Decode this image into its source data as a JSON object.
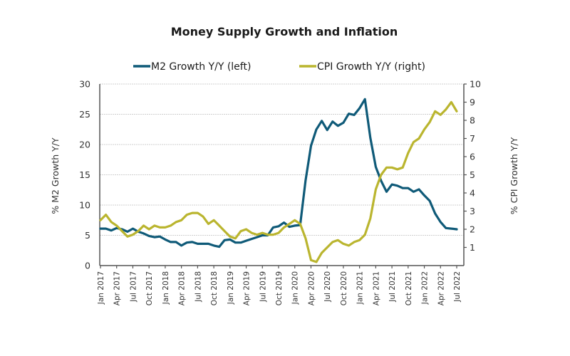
{
  "chart_data": {
    "type": "line",
    "title": "Money Supply Growth and Inflation",
    "xlabel": "",
    "ylabel_left": "% M2 Growth Y/Y",
    "ylabel_right": "% CPI Growth Y/Y",
    "ylim_left": [
      0,
      30
    ],
    "ylim_right": [
      0,
      10
    ],
    "yticks_left": [
      0,
      5,
      10,
      15,
      20,
      25,
      30
    ],
    "yticks_right": [
      1,
      2,
      3,
      4,
      5,
      6,
      7,
      8,
      9,
      10
    ],
    "grid": true,
    "legend_position": "top-center",
    "x_tick_labels": [
      "Jan 2017",
      "Apr 2017",
      "Jul 2017",
      "Oct 2017",
      "Jan 2018",
      "Apr 2018",
      "Jul 2018",
      "Oct 2018",
      "Jan 2019",
      "Apr 2019",
      "Jul 2019",
      "Oct 2019",
      "Jan 2020",
      "Apr 2020",
      "Jul 2020",
      "Oct 2020",
      "Jan 2021",
      "Apr 2021",
      "Jul 2021",
      "Oct 2021",
      "Jan 2022",
      "Apr 2022",
      "Jul 2022"
    ],
    "x_start": "Jan 2017",
    "x_frequency": "monthly",
    "series": [
      {
        "name": "M2 Growth Y/Y (left)",
        "axis": "left",
        "color": "#0f5a78",
        "values": [
          6.1,
          6.1,
          5.8,
          6.2,
          6.0,
          5.6,
          6.1,
          5.6,
          5.3,
          4.9,
          4.7,
          4.8,
          4.3,
          3.9,
          3.9,
          3.3,
          3.8,
          3.9,
          3.6,
          3.6,
          3.6,
          3.3,
          3.1,
          4.2,
          4.3,
          3.8,
          3.8,
          4.1,
          4.4,
          4.7,
          5.0,
          5.0,
          6.3,
          6.5,
          7.1,
          6.4,
          6.6,
          6.7,
          14.1,
          19.8,
          22.5,
          23.9,
          22.4,
          23.8,
          23.1,
          23.6,
          25.1,
          24.9,
          26.0,
          27.5,
          21.1,
          16.3,
          14.0,
          12.2,
          13.4,
          13.2,
          12.8,
          12.8,
          12.2,
          12.6,
          11.6,
          10.7,
          8.6,
          7.2,
          6.2,
          6.1,
          6.0
        ]
      },
      {
        "name": "CPI Growth Y/Y (right)",
        "axis": "right",
        "color": "#bab52f",
        "values": [
          2.5,
          2.8,
          2.4,
          2.2,
          1.9,
          1.6,
          1.7,
          1.9,
          2.2,
          2.0,
          2.2,
          2.1,
          2.1,
          2.2,
          2.4,
          2.5,
          2.8,
          2.9,
          2.9,
          2.7,
          2.3,
          2.5,
          2.2,
          1.9,
          1.6,
          1.5,
          1.9,
          2.0,
          1.8,
          1.7,
          1.8,
          1.7,
          1.7,
          1.8,
          2.1,
          2.3,
          2.5,
          2.3,
          1.5,
          0.3,
          0.2,
          0.7,
          1.0,
          1.3,
          1.4,
          1.2,
          1.1,
          1.3,
          1.4,
          1.7,
          2.6,
          4.2,
          5.0,
          5.4,
          5.4,
          5.3,
          5.4,
          6.2,
          6.8,
          7.0,
          7.5,
          7.9,
          8.5,
          8.3,
          8.6,
          9.0,
          8.5
        ]
      }
    ]
  }
}
